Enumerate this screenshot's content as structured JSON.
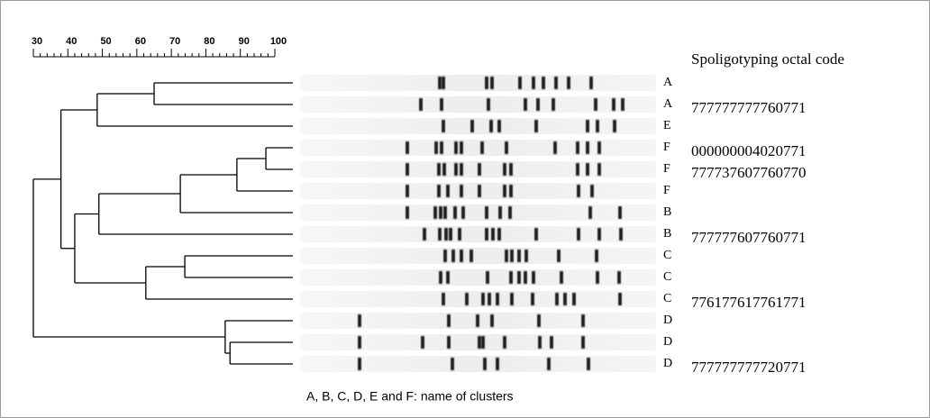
{
  "scale": {
    "xlim": [
      30,
      100
    ],
    "xticks": [
      30,
      40,
      50,
      60,
      70,
      80,
      90,
      100
    ]
  },
  "dendrogram": {
    "similarity": 30,
    "children": [
      {
        "similarity": 38,
        "children": [
          {
            "similarity": 48.5,
            "children": [
              {
                "similarity": 65,
                "children": [
                  0,
                  1
                ]
              },
              2
            ]
          },
          {
            "similarity": 42,
            "children": [
              {
                "similarity": 49,
                "children": [
                  {
                    "similarity": 72.6,
                    "children": [
                      {
                        "similarity": 89,
                        "children": [
                          {
                            "similarity": 97.4,
                            "children": [
                              3,
                              4
                            ]
                          },
                          5
                        ]
                      },
                      6
                    ]
                  },
                  7
                ]
              },
              {
                "similarity": 62.6,
                "children": [
                  {
                    "similarity": 73.9,
                    "children": [
                      8,
                      9
                    ]
                  },
                  10
                ]
              }
            ]
          }
        ]
      },
      {
        "similarity": 85.6,
        "children": [
          11,
          {
            "similarity": 87,
            "children": [
              12,
              13
            ]
          }
        ]
      }
    ]
  },
  "lanes": [
    "A",
    "A",
    "E",
    "F",
    "F",
    "F",
    "B",
    "B",
    "C",
    "C",
    "C",
    "D",
    "D",
    "D"
  ],
  "octal_header": "Spoligotyping octal  code",
  "octal_codes": [
    {
      "lane": 1,
      "code": "777777777760771"
    },
    {
      "lane": 3,
      "code": "000000004020771"
    },
    {
      "lane": 4,
      "code": "777737607760770"
    },
    {
      "lane": 7,
      "code": "777777607760771"
    },
    {
      "lane": 10,
      "code": "776177617761771"
    },
    {
      "lane": 13,
      "code": "777777777720771"
    }
  ],
  "caption": "A, B, C, D, E and F: name of clusters"
}
